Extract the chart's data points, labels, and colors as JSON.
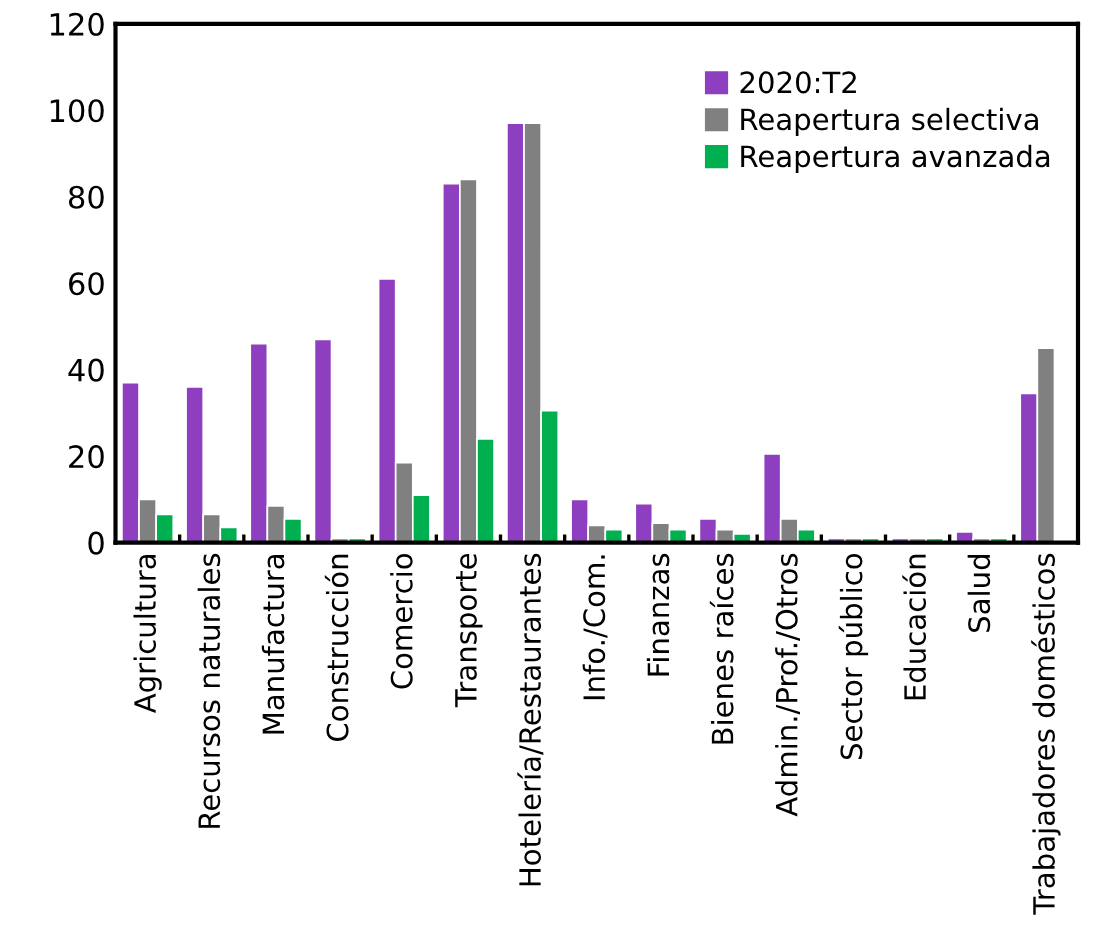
{
  "chart_data": {
    "type": "bar",
    "categories": [
      "Agricultura",
      "Recursos naturales",
      "Manufactura",
      "Construcción",
      "Comercio",
      "Transporte",
      "Hotelería/Restaurantes",
      "Info./Com.",
      "Finanzas",
      "Bienes raíces",
      "Admin./Prof./Otros",
      "Sector público",
      "Educación",
      "Salud",
      "Trabajadores domésticos"
    ],
    "series": [
      {
        "name": "2020:T2",
        "color": "#8e3fc0",
        "values": [
          37,
          36,
          46,
          47,
          61,
          83,
          97,
          10,
          9,
          5.5,
          20.5,
          1,
          1,
          2.5,
          34.5
        ]
      },
      {
        "name": "Reapertura selectiva",
        "color": "#808080",
        "values": [
          10,
          6.5,
          8.5,
          1,
          18.5,
          84,
          97,
          4,
          4.5,
          3,
          5.5,
          1,
          1,
          1,
          45
        ]
      },
      {
        "name": "Reapertura avanzada",
        "color": "#00b050",
        "values": [
          6.5,
          3.5,
          5.5,
          1,
          11,
          24,
          30.5,
          3,
          3,
          2,
          3,
          1,
          1,
          1,
          null
        ]
      }
    ],
    "ylim": [
      0,
      120
    ],
    "yticks": [
      0,
      20,
      40,
      60,
      80,
      100,
      120
    ],
    "grid": false,
    "legend": "top right"
  }
}
